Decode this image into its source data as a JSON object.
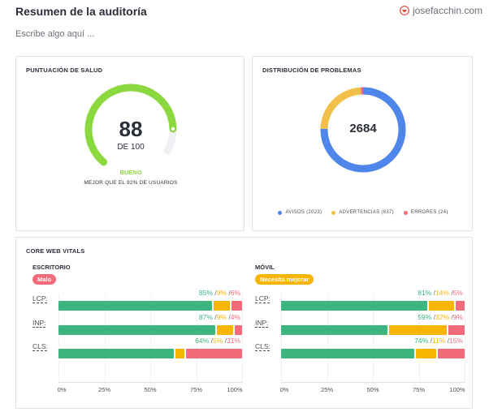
{
  "header": {
    "title": "Resumen de la auditoría",
    "brand": "josefacchin.com"
  },
  "notes_placeholder": "Escribe algo aquí ...",
  "health": {
    "title": "PUNTUACIÓN DE SALUD",
    "score": "88",
    "score_value": 88,
    "score_max": 100,
    "suffix": "DE 100",
    "rating": "BUENO",
    "comparison": "MEJOR QUE EL 92% DE USUARIOS",
    "color": "#8cd93f"
  },
  "issues": {
    "title": "DISTRIBUCIÓN DE PROBLEMAS",
    "total": "2684",
    "segments": [
      {
        "label": "AVISOS (2023)",
        "value": 2023,
        "color": "#4e86ea"
      },
      {
        "label": "ADVERTENCIAS (637)",
        "value": 637,
        "color": "#f0c04a"
      },
      {
        "label": "ERRORES (24)",
        "value": 24,
        "color": "#f26b7a"
      }
    ]
  },
  "cwv": {
    "title": "CORE WEB VITALS",
    "axis_ticks": [
      "0%",
      "25%",
      "50%",
      "75%",
      "100%"
    ],
    "colors": {
      "good": "#3db57e",
      "ni": "#f7b500",
      "poor": "#f26b7a"
    },
    "devices": [
      {
        "label": "ESCRITORIO",
        "badge": "Malo",
        "badge_color": "#f26b7a",
        "metrics": [
          {
            "name": "LCP:",
            "good": "85%",
            "ni": "9%",
            "poor": "6%",
            "g": 85,
            "n": 9,
            "p": 6
          },
          {
            "name": "INP:",
            "good": "87%",
            "ni": "9%",
            "poor": "4%",
            "g": 87,
            "n": 9,
            "p": 4
          },
          {
            "name": "CLS:",
            "good": "64%",
            "ni": "5%",
            "poor": "31%",
            "g": 64,
            "n": 5,
            "p": 31
          }
        ]
      },
      {
        "label": "MÓVIL",
        "badge": "Necesita mejorar",
        "badge_color": "#f7b500",
        "metrics": [
          {
            "name": "LCP:",
            "good": "81%",
            "ni": "14%",
            "poor": "5%",
            "g": 81,
            "n": 14,
            "p": 5
          },
          {
            "name": "INP:",
            "good": "59%",
            "ni": "32%",
            "poor": "9%",
            "g": 59,
            "n": 32,
            "p": 9
          },
          {
            "name": "CLS:",
            "good": "74%",
            "ni": "11%",
            "poor": "15%",
            "g": 74,
            "n": 11,
            "p": 15
          }
        ]
      }
    ]
  }
}
